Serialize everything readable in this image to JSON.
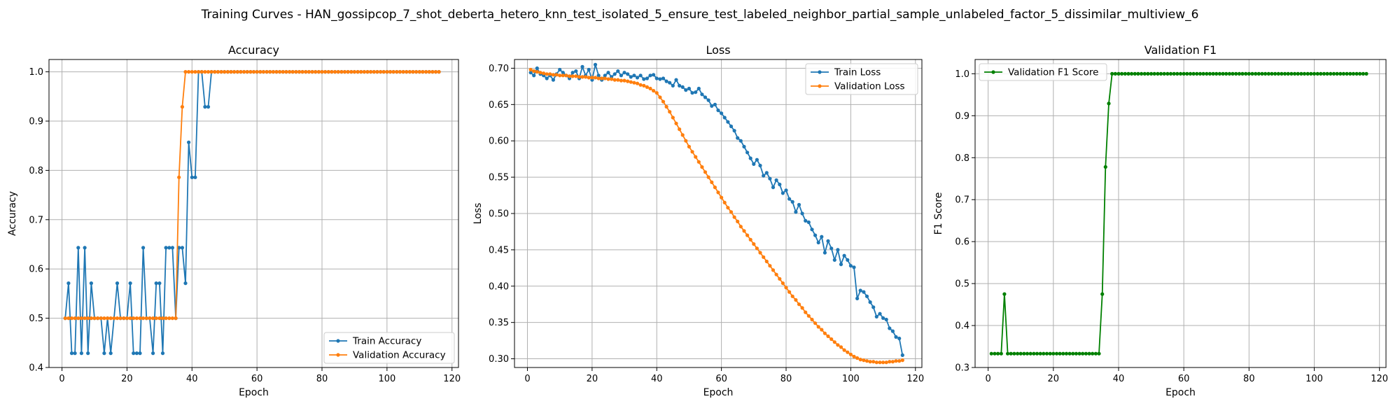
{
  "figure": {
    "suptitle": "Training Curves - HAN_gossipcop_7_shot_deberta_hetero_knn_test_isolated_5_ensure_test_labeled_neighbor_partial_sample_unlabeled_factor_5_dissimilar_multiview_6"
  },
  "colors": {
    "blue": "#1f77b4",
    "orange": "#ff7f0e",
    "green": "#008000",
    "grid": "#b0b0b0"
  },
  "chart_data": [
    {
      "type": "line",
      "title": "Accuracy",
      "xlabel": "Epoch",
      "ylabel": "Accuracy",
      "xlim": [
        -4,
        122
      ],
      "ylim": [
        0.4,
        1.025
      ],
      "xticks": [
        0,
        20,
        40,
        60,
        80,
        100,
        120
      ],
      "yticks": [
        0.4,
        0.5,
        0.6,
        0.7,
        0.8,
        0.9,
        1.0
      ],
      "ytick_labels": [
        "0.4",
        "0.5",
        "0.6",
        "0.7",
        "0.8",
        "0.9",
        "1.0"
      ],
      "grid": true,
      "legend": "lower-right",
      "x": {
        "start": 1,
        "end": 116
      },
      "series": [
        {
          "name": "Train Accuracy",
          "color": "#1f77b4",
          "values": [
            0.5,
            0.571,
            0.429,
            0.429,
            0.643,
            0.429,
            0.643,
            0.429,
            0.571,
            0.5,
            0.5,
            0.5,
            0.429,
            0.5,
            0.429,
            0.5,
            0.571,
            0.5,
            0.5,
            0.5,
            0.571,
            0.429,
            0.429,
            0.429,
            0.643,
            0.5,
            0.5,
            0.429,
            0.571,
            0.571,
            0.429,
            0.643,
            0.643,
            0.643,
            0.5,
            0.643,
            0.643,
            0.571,
            0.857,
            0.786,
            0.786,
            1.0,
            1.0,
            0.929,
            0.929,
            1.0,
            1.0,
            1.0,
            1.0,
            1.0,
            1.0,
            1.0,
            1.0,
            1.0,
            1.0,
            1.0,
            1.0,
            1.0,
            1.0,
            1.0,
            1.0,
            1.0,
            1.0,
            1.0,
            1.0,
            1.0,
            1.0,
            1.0,
            1.0,
            1.0,
            1.0,
            1.0,
            1.0,
            1.0,
            1.0,
            1.0,
            1.0,
            1.0,
            1.0,
            1.0,
            1.0,
            1.0,
            1.0,
            1.0,
            1.0,
            1.0,
            1.0,
            1.0,
            1.0,
            1.0,
            1.0,
            1.0,
            1.0,
            1.0,
            1.0,
            1.0,
            1.0,
            1.0,
            1.0,
            1.0,
            1.0,
            1.0,
            1.0,
            1.0,
            1.0,
            1.0,
            1.0,
            1.0,
            1.0,
            1.0,
            1.0,
            1.0,
            1.0,
            1.0,
            1.0,
            1.0
          ]
        },
        {
          "name": "Validation Accuracy",
          "color": "#ff7f0e",
          "values": [
            0.5,
            0.5,
            0.5,
            0.5,
            0.5,
            0.5,
            0.5,
            0.5,
            0.5,
            0.5,
            0.5,
            0.5,
            0.5,
            0.5,
            0.5,
            0.5,
            0.5,
            0.5,
            0.5,
            0.5,
            0.5,
            0.5,
            0.5,
            0.5,
            0.5,
            0.5,
            0.5,
            0.5,
            0.5,
            0.5,
            0.5,
            0.5,
            0.5,
            0.5,
            0.5,
            0.786,
            0.929,
            1.0,
            1.0,
            1.0,
            1.0,
            1.0,
            1.0,
            1.0,
            1.0,
            1.0,
            1.0,
            1.0,
            1.0,
            1.0,
            1.0,
            1.0,
            1.0,
            1.0,
            1.0,
            1.0,
            1.0,
            1.0,
            1.0,
            1.0,
            1.0,
            1.0,
            1.0,
            1.0,
            1.0,
            1.0,
            1.0,
            1.0,
            1.0,
            1.0,
            1.0,
            1.0,
            1.0,
            1.0,
            1.0,
            1.0,
            1.0,
            1.0,
            1.0,
            1.0,
            1.0,
            1.0,
            1.0,
            1.0,
            1.0,
            1.0,
            1.0,
            1.0,
            1.0,
            1.0,
            1.0,
            1.0,
            1.0,
            1.0,
            1.0,
            1.0,
            1.0,
            1.0,
            1.0,
            1.0,
            1.0,
            1.0,
            1.0,
            1.0,
            1.0,
            1.0,
            1.0,
            1.0,
            1.0,
            1.0,
            1.0,
            1.0,
            1.0,
            1.0,
            1.0,
            1.0
          ]
        }
      ]
    },
    {
      "type": "line",
      "title": "Loss",
      "xlabel": "Epoch",
      "ylabel": "Loss",
      "xlim": [
        -4,
        122
      ],
      "ylim": [
        0.288,
        0.712
      ],
      "xticks": [
        0,
        20,
        40,
        60,
        80,
        100,
        120
      ],
      "yticks": [
        0.3,
        0.35,
        0.4,
        0.45,
        0.5,
        0.55,
        0.6,
        0.65,
        0.7
      ],
      "ytick_labels": [
        "0.30",
        "0.35",
        "0.40",
        "0.45",
        "0.50",
        "0.55",
        "0.60",
        "0.65",
        "0.70"
      ],
      "grid": true,
      "legend": "upper-right",
      "x": {
        "start": 1,
        "end": 116
      },
      "series": [
        {
          "name": "Train Loss",
          "color": "#1f77b4",
          "values": [
            0.694,
            0.69,
            0.7,
            0.692,
            0.69,
            0.686,
            0.69,
            0.684,
            0.692,
            0.698,
            0.694,
            0.69,
            0.686,
            0.694,
            0.696,
            0.686,
            0.702,
            0.69,
            0.698,
            0.684,
            0.705,
            0.69,
            0.684,
            0.69,
            0.694,
            0.688,
            0.692,
            0.696,
            0.69,
            0.694,
            0.692,
            0.688,
            0.69,
            0.687,
            0.69,
            0.685,
            0.686,
            0.69,
            0.691,
            0.686,
            0.685,
            0.686,
            0.682,
            0.68,
            0.676,
            0.684,
            0.676,
            0.674,
            0.67,
            0.672,
            0.666,
            0.667,
            0.672,
            0.664,
            0.66,
            0.656,
            0.648,
            0.65,
            0.642,
            0.638,
            0.632,
            0.626,
            0.62,
            0.614,
            0.604,
            0.6,
            0.592,
            0.584,
            0.576,
            0.568,
            0.574,
            0.566,
            0.552,
            0.556,
            0.548,
            0.536,
            0.546,
            0.54,
            0.528,
            0.532,
            0.52,
            0.516,
            0.502,
            0.512,
            0.5,
            0.49,
            0.488,
            0.478,
            0.47,
            0.46,
            0.468,
            0.446,
            0.462,
            0.452,
            0.436,
            0.45,
            0.43,
            0.442,
            0.436,
            0.428,
            0.426,
            0.383,
            0.394,
            0.392,
            0.386,
            0.378,
            0.371,
            0.358,
            0.362,
            0.356,
            0.354,
            0.342,
            0.338,
            0.33,
            0.328,
            0.305
          ]
        },
        {
          "name": "Validation Loss",
          "color": "#ff7f0e",
          "values": [
            0.698,
            0.696,
            0.695,
            0.694,
            0.693,
            0.692,
            0.692,
            0.691,
            0.691,
            0.69,
            0.69,
            0.69,
            0.689,
            0.689,
            0.689,
            0.688,
            0.688,
            0.688,
            0.687,
            0.687,
            0.687,
            0.686,
            0.686,
            0.686,
            0.685,
            0.685,
            0.684,
            0.684,
            0.683,
            0.683,
            0.682,
            0.681,
            0.68,
            0.679,
            0.677,
            0.676,
            0.674,
            0.672,
            0.669,
            0.666,
            0.66,
            0.654,
            0.647,
            0.64,
            0.632,
            0.624,
            0.616,
            0.608,
            0.6,
            0.592,
            0.585,
            0.578,
            0.571,
            0.564,
            0.557,
            0.55,
            0.543,
            0.536,
            0.529,
            0.522,
            0.515,
            0.508,
            0.502,
            0.495,
            0.489,
            0.482,
            0.476,
            0.47,
            0.464,
            0.458,
            0.452,
            0.446,
            0.44,
            0.434,
            0.428,
            0.422,
            0.416,
            0.41,
            0.404,
            0.398,
            0.392,
            0.386,
            0.381,
            0.375,
            0.37,
            0.364,
            0.359,
            0.354,
            0.349,
            0.344,
            0.34,
            0.335,
            0.331,
            0.327,
            0.323,
            0.319,
            0.316,
            0.312,
            0.309,
            0.306,
            0.303,
            0.301,
            0.299,
            0.298,
            0.297,
            0.296,
            0.296,
            0.295,
            0.295,
            0.295,
            0.295,
            0.296,
            0.296,
            0.297,
            0.297,
            0.298
          ]
        }
      ]
    },
    {
      "type": "line",
      "title": "Validation F1",
      "xlabel": "Epoch",
      "ylabel": "F1 Score",
      "xlim": [
        -4,
        122
      ],
      "ylim": [
        0.3,
        1.034
      ],
      "xticks": [
        0,
        20,
        40,
        60,
        80,
        100,
        120
      ],
      "yticks": [
        0.3,
        0.4,
        0.5,
        0.6,
        0.7,
        0.8,
        0.9,
        1.0
      ],
      "ytick_labels": [
        "0.3",
        "0.4",
        "0.5",
        "0.6",
        "0.7",
        "0.8",
        "0.9",
        "1.0"
      ],
      "grid": true,
      "legend": "upper-left",
      "x": {
        "start": 1,
        "end": 116
      },
      "series": [
        {
          "name": "Validation F1 Score",
          "color": "#008000",
          "values": [
            0.333,
            0.333,
            0.333,
            0.333,
            0.475,
            0.333,
            0.333,
            0.333,
            0.333,
            0.333,
            0.333,
            0.333,
            0.333,
            0.333,
            0.333,
            0.333,
            0.333,
            0.333,
            0.333,
            0.333,
            0.333,
            0.333,
            0.333,
            0.333,
            0.333,
            0.333,
            0.333,
            0.333,
            0.333,
            0.333,
            0.333,
            0.333,
            0.333,
            0.333,
            0.475,
            0.778,
            0.929,
            1.0,
            1.0,
            1.0,
            1.0,
            1.0,
            1.0,
            1.0,
            1.0,
            1.0,
            1.0,
            1.0,
            1.0,
            1.0,
            1.0,
            1.0,
            1.0,
            1.0,
            1.0,
            1.0,
            1.0,
            1.0,
            1.0,
            1.0,
            1.0,
            1.0,
            1.0,
            1.0,
            1.0,
            1.0,
            1.0,
            1.0,
            1.0,
            1.0,
            1.0,
            1.0,
            1.0,
            1.0,
            1.0,
            1.0,
            1.0,
            1.0,
            1.0,
            1.0,
            1.0,
            1.0,
            1.0,
            1.0,
            1.0,
            1.0,
            1.0,
            1.0,
            1.0,
            1.0,
            1.0,
            1.0,
            1.0,
            1.0,
            1.0,
            1.0,
            1.0,
            1.0,
            1.0,
            1.0,
            1.0,
            1.0,
            1.0,
            1.0,
            1.0,
            1.0,
            1.0,
            1.0,
            1.0,
            1.0,
            1.0,
            1.0,
            1.0,
            1.0,
            1.0,
            1.0
          ]
        }
      ]
    }
  ]
}
